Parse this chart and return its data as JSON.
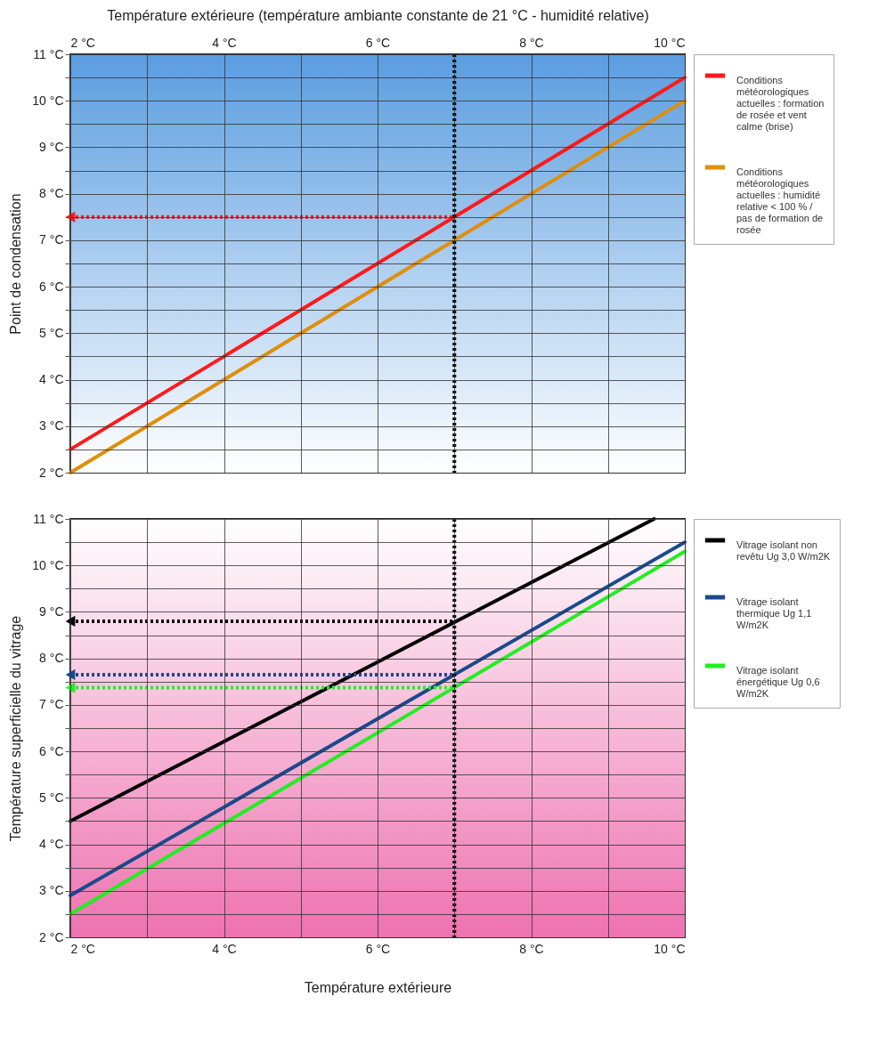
{
  "chart_data": [
    {
      "type": "line",
      "x2label": "Température extérieure (température ambiante constante de 21 °C - humidité relative)",
      "ylabel": "Point de condensation",
      "xlim": [
        2,
        10
      ],
      "xticks": [
        {
          "value": 2,
          "label": "2 °C"
        },
        {
          "value": 3,
          "label": null
        },
        {
          "value": 4,
          "label": "4 °C"
        },
        {
          "value": 5,
          "label": null
        },
        {
          "value": 6,
          "label": "6 °C"
        },
        {
          "value": 7,
          "label": null
        },
        {
          "value": 8,
          "label": "8 °C"
        },
        {
          "value": 9,
          "label": null
        },
        {
          "value": 10,
          "label": "10 °C"
        }
      ],
      "ylim": [
        2,
        11
      ],
      "yticks": [
        {
          "value": 2,
          "label": "2 °C"
        },
        {
          "value": 2.5,
          "label": null
        },
        {
          "value": 3,
          "label": "3 °C"
        },
        {
          "value": 3.5,
          "label": null
        },
        {
          "value": 4,
          "label": "4 °C"
        },
        {
          "value": 4.5,
          "label": null
        },
        {
          "value": 5,
          "label": "5 °C"
        },
        {
          "value": 5.5,
          "label": null
        },
        {
          "value": 6,
          "label": "6 °C"
        },
        {
          "value": 6.5,
          "label": null
        },
        {
          "value": 7,
          "label": "7 °C"
        },
        {
          "value": 7.5,
          "label": null
        },
        {
          "value": 8,
          "label": "8 °C"
        },
        {
          "value": 8.5,
          "label": null
        },
        {
          "value": 9,
          "label": "9 °C"
        },
        {
          "value": 9.5,
          "label": null
        },
        {
          "value": 10,
          "label": "10 °C"
        },
        {
          "value": 10.5,
          "label": null
        },
        {
          "value": 11,
          "label": "11 °C"
        }
      ],
      "grid": true,
      "legend": "right",
      "series": [
        {
          "name": "Conditions météorologiques actuelles : formation de rosée et vent calme (brise)",
          "color": "#ff1a1a",
          "x": [
            2,
            10
          ],
          "values": [
            2.5,
            10.5
          ]
        },
        {
          "name": "Conditions météorologiques actuelles : humidité relative < 100 %  / pas de formation de rosée",
          "color": "#e08e0b",
          "x": [
            2,
            10
          ],
          "values": [
            2,
            10
          ]
        },
        {
          "type": "line",
          "line_style": "dotted",
          "color": "#ff1a1a",
          "x": [
            2,
            7
          ],
          "values": [
            7.5,
            7.5
          ]
        }
      ],
      "ref_lines": [
        {
          "axis": "x",
          "value": 7,
          "label": null,
          "color": "#000000",
          "line_style": "dotted"
        }
      ]
    },
    {
      "type": "line",
      "xlabel": "Température extérieure",
      "ylabel": "Température superficielle du vitrage",
      "xlim": [
        2,
        10
      ],
      "xticks": [
        {
          "value": 2,
          "label": "2 °C"
        },
        {
          "value": 3,
          "label": null
        },
        {
          "value": 4,
          "label": "4 °C"
        },
        {
          "value": 5,
          "label": null
        },
        {
          "value": 6,
          "label": "6 °C"
        },
        {
          "value": 7,
          "label": null
        },
        {
          "value": 8,
          "label": "8 °C"
        },
        {
          "value": 9,
          "label": null
        },
        {
          "value": 10,
          "label": "10 °C"
        }
      ],
      "ylim": [
        2,
        11
      ],
      "yticks": [
        {
          "value": 2,
          "label": "2 °C"
        },
        {
          "value": 2.5,
          "label": null
        },
        {
          "value": 3,
          "label": "3 °C"
        },
        {
          "value": 3.5,
          "label": null
        },
        {
          "value": 4,
          "label": "4 °C"
        },
        {
          "value": 4.5,
          "label": null
        },
        {
          "value": 5,
          "label": "5 °C"
        },
        {
          "value": 5.5,
          "label": null
        },
        {
          "value": 6,
          "label": "6 °C"
        },
        {
          "value": 6.5,
          "label": null
        },
        {
          "value": 7,
          "label": "7 °C"
        },
        {
          "value": 7.5,
          "label": null
        },
        {
          "value": 8,
          "label": "8 °C"
        },
        {
          "value": 8.5,
          "label": null
        },
        {
          "value": 9,
          "label": "9 °C"
        },
        {
          "value": 9.5,
          "label": null
        },
        {
          "value": 10,
          "label": "10 °C"
        },
        {
          "value": 10.5,
          "label": null
        },
        {
          "value": 11,
          "label": "11 °C"
        }
      ],
      "grid": true,
      "legend": "right",
      "series": [
        {
          "name": "Vitrage isolant non revêtu Ug 3,0 W/m2K",
          "color": "#000000",
          "x": [
            2,
            9.6
          ],
          "values": [
            4.5,
            11
          ]
        },
        {
          "name": "Vitrage isolant thermique Ug 1,1 W/m2K",
          "color": "#1a4a8c",
          "x": [
            2,
            10
          ],
          "values": [
            2.9,
            10.5
          ]
        },
        {
          "name": "Vitrage isolant énergétique Ug 0,6 W/m2K",
          "color": "#22ee22",
          "x": [
            2,
            10
          ],
          "values": [
            2.5,
            10.3
          ]
        },
        {
          "type": "line",
          "line_style": "dotted",
          "color": "#000000",
          "x": [
            2,
            7
          ],
          "values": [
            8.8,
            8.8
          ]
        },
        {
          "type": "line",
          "line_style": "dotted",
          "color": "#1a4a8c",
          "x": [
            2,
            7
          ],
          "values": [
            7.65,
            7.65
          ]
        },
        {
          "type": "line",
          "line_style": "dotted",
          "color": "#22ee22",
          "x": [
            2,
            7
          ],
          "values": [
            7.37,
            7.37
          ]
        }
      ],
      "ref_lines": [
        {
          "axis": "x",
          "value": 7,
          "label": null,
          "color": "#000000",
          "line_style": "dotted"
        }
      ]
    }
  ]
}
